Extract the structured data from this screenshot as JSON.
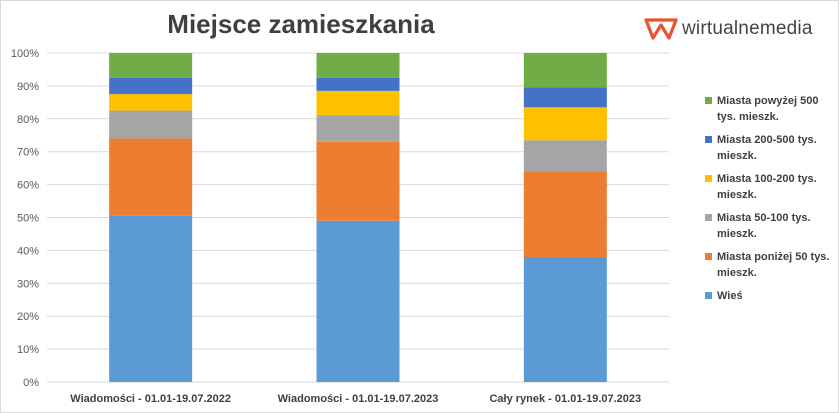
{
  "brand": {
    "name": "wirtualnemedia",
    "color": "#e8542f"
  },
  "chart_data": {
    "type": "bar",
    "stacked": true,
    "normalized": true,
    "title": "Miejsce zamieszkania",
    "categories": [
      "Wiadomości - 01.01-19.07.2022",
      "Wiadomości - 01.01-19.07.2023",
      "Cały rynek - 01.01-19.07.2023"
    ],
    "y_ticks": [
      "0%",
      "10%",
      "20%",
      "30%",
      "40%",
      "50%",
      "60%",
      "70%",
      "80%",
      "90%",
      "100%"
    ],
    "ylim": [
      0,
      100
    ],
    "grid": true,
    "legend_position": "right",
    "series": [
      {
        "name": "Wieś",
        "color": "#5b9bd5",
        "values": [
          50.5,
          49,
          38
        ]
      },
      {
        "name": "Miasta poniżej 50 tys. mieszk.",
        "color": "#ed7d31",
        "values": [
          23.5,
          24,
          26
        ]
      },
      {
        "name": "Miasta 50-100 tys. mieszk.",
        "color": "#a5a5a5",
        "values": [
          8.5,
          8,
          9.5
        ]
      },
      {
        "name": "Miasta 100-200 tys. mieszk.",
        "color": "#ffc000",
        "values": [
          5,
          7.5,
          10
        ]
      },
      {
        "name": "Miasta 200-500 tys. mieszk.",
        "color": "#4472c4",
        "values": [
          5,
          4,
          6
        ]
      },
      {
        "name": "Miasta powyżej 500 tys. mieszk.",
        "color": "#70ad47",
        "values": [
          7.5,
          7.5,
          10.5
        ]
      }
    ]
  }
}
